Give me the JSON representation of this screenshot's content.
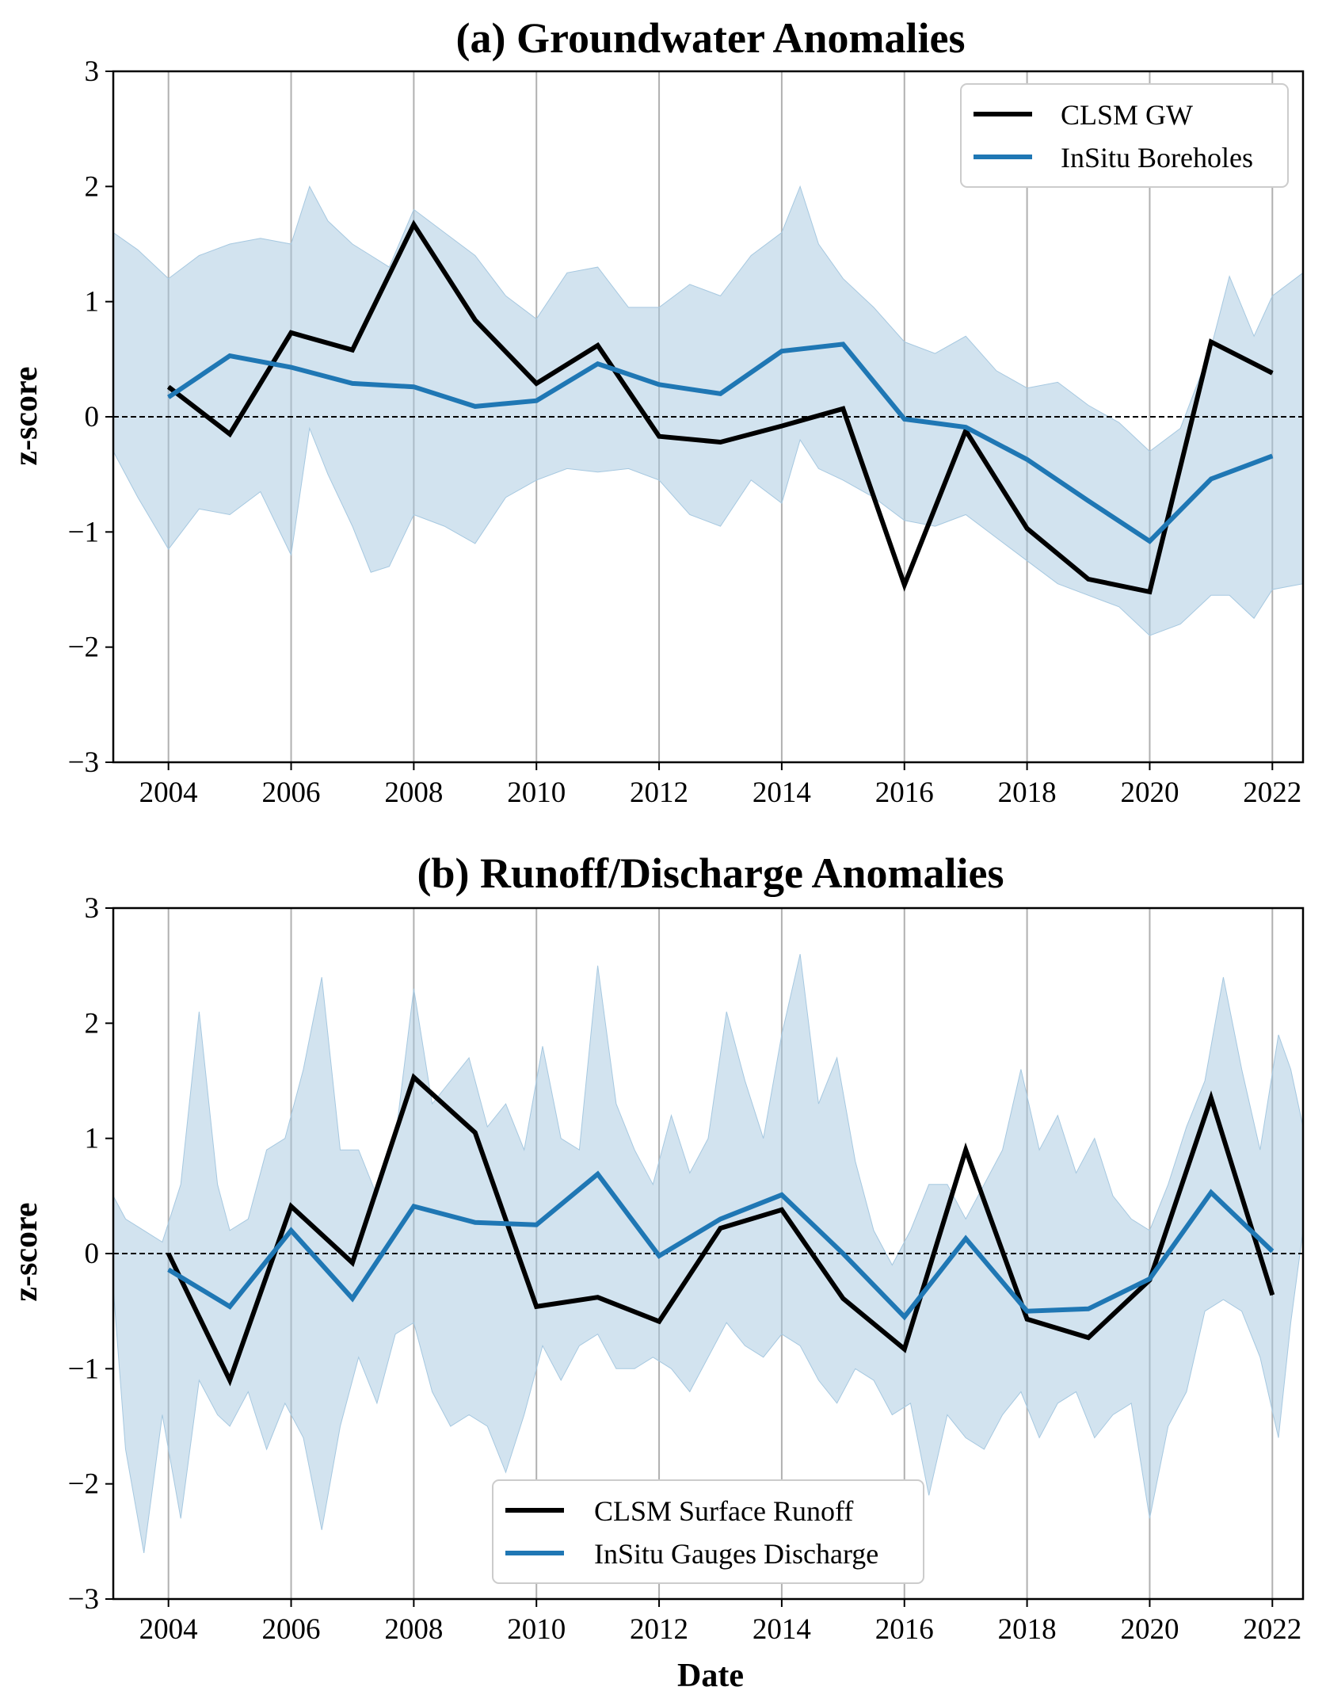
{
  "chart_data": [
    {
      "type": "line",
      "title": "(a) Groundwater Anomalies",
      "xlabel": "",
      "ylabel": "z-score",
      "xlim": [
        2003.1,
        2022.5
      ],
      "ylim": [
        -3,
        3
      ],
      "xticks": [
        2004,
        2006,
        2008,
        2010,
        2012,
        2014,
        2016,
        2018,
        2020,
        2022
      ],
      "xtick_labels": [
        "2004",
        "2006",
        "2008",
        "2010",
        "2012",
        "2014",
        "2016",
        "2018",
        "2020",
        "2022"
      ],
      "yticks": [
        -3,
        -2,
        -1,
        0,
        1,
        2,
        3
      ],
      "ytick_labels": [
        "−3",
        "−2",
        "−1",
        "0",
        "1",
        "2",
        "3"
      ],
      "grid": "vertical",
      "zero_line": true,
      "legend_position": "upper-right",
      "colors": {
        "model": "#000000",
        "insitu": "#1f77b4",
        "band": "#a6c8e0"
      },
      "x": [
        2004,
        2005,
        2006,
        2007,
        2008,
        2009,
        2010,
        2011,
        2012,
        2013,
        2014,
        2015,
        2016,
        2017,
        2018,
        2019,
        2020,
        2021,
        2022
      ],
      "series": [
        {
          "name": "CLSM GW",
          "color": "#000000",
          "values": [
            0.26,
            -0.15,
            0.73,
            0.58,
            1.67,
            0.84,
            0.29,
            0.62,
            -0.17,
            -0.22,
            -0.08,
            0.07,
            -1.46,
            -0.12,
            -0.97,
            -1.41,
            -1.52,
            0.65,
            0.38
          ]
        },
        {
          "name": "InSitu Boreholes",
          "color": "#1f77b4",
          "values": [
            0.17,
            0.53,
            0.43,
            0.29,
            0.26,
            0.09,
            0.14,
            0.46,
            0.28,
            0.2,
            0.57,
            0.63,
            -0.02,
            -0.09,
            -0.37,
            -0.73,
            -1.08,
            -0.54,
            -0.34
          ]
        }
      ],
      "band": {
        "name": "InSitu Boreholes spread",
        "x": [
          2003.1,
          2003.5,
          2004.0,
          2004.5,
          2005.0,
          2005.5,
          2006.0,
          2006.3,
          2006.6,
          2007.0,
          2007.3,
          2007.6,
          2008.0,
          2008.5,
          2009.0,
          2009.5,
          2010.0,
          2010.5,
          2011.0,
          2011.5,
          2012.0,
          2012.5,
          2013.0,
          2013.5,
          2014.0,
          2014.3,
          2014.6,
          2015.0,
          2015.5,
          2016.0,
          2016.5,
          2017.0,
          2017.5,
          2018.0,
          2018.5,
          2019.0,
          2019.5,
          2020.0,
          2020.5,
          2021.0,
          2021.3,
          2021.7,
          2022.0,
          2022.5
        ],
        "upper": [
          1.6,
          1.45,
          1.2,
          1.4,
          1.5,
          1.55,
          1.5,
          2.0,
          1.7,
          1.5,
          1.4,
          1.3,
          1.8,
          1.6,
          1.4,
          1.05,
          0.85,
          1.25,
          1.3,
          0.95,
          0.95,
          1.15,
          1.05,
          1.4,
          1.6,
          2.0,
          1.5,
          1.2,
          0.95,
          0.65,
          0.55,
          0.7,
          0.4,
          0.25,
          0.3,
          0.1,
          -0.05,
          -0.3,
          -0.1,
          0.6,
          1.22,
          0.7,
          1.05,
          1.25
        ],
        "lower": [
          -0.3,
          -0.7,
          -1.15,
          -0.8,
          -0.85,
          -0.65,
          -1.2,
          -0.1,
          -0.5,
          -0.95,
          -1.35,
          -1.3,
          -0.85,
          -0.95,
          -1.1,
          -0.7,
          -0.55,
          -0.45,
          -0.48,
          -0.45,
          -0.55,
          -0.85,
          -0.95,
          -0.55,
          -0.75,
          -0.2,
          -0.45,
          -0.55,
          -0.7,
          -0.9,
          -0.95,
          -0.85,
          -1.05,
          -1.25,
          -1.45,
          -1.55,
          -1.65,
          -1.9,
          -1.8,
          -1.55,
          -1.55,
          -1.75,
          -1.5,
          -1.45
        ]
      }
    },
    {
      "type": "line",
      "title": "(b) Runoff/Discharge Anomalies",
      "xlabel": "Date",
      "ylabel": "z-score",
      "xlim": [
        2003.1,
        2022.5
      ],
      "ylim": [
        -3,
        3
      ],
      "xticks": [
        2004,
        2006,
        2008,
        2010,
        2012,
        2014,
        2016,
        2018,
        2020,
        2022
      ],
      "xtick_labels": [
        "2004",
        "2006",
        "2008",
        "2010",
        "2012",
        "2014",
        "2016",
        "2018",
        "2020",
        "2022"
      ],
      "yticks": [
        -3,
        -2,
        -1,
        0,
        1,
        2,
        3
      ],
      "ytick_labels": [
        "−3",
        "−2",
        "−1",
        "0",
        "1",
        "2",
        "3"
      ],
      "grid": "vertical",
      "zero_line": true,
      "legend_position": "lower-center",
      "colors": {
        "model": "#000000",
        "insitu": "#1f77b4",
        "band": "#a6c8e0"
      },
      "x": [
        2004,
        2005,
        2006,
        2007,
        2008,
        2009,
        2010,
        2011,
        2012,
        2013,
        2014,
        2015,
        2016,
        2017,
        2018,
        2019,
        2020,
        2021,
        2022
      ],
      "series": [
        {
          "name": "CLSM Surface Runoff",
          "color": "#000000",
          "values": [
            0.0,
            -1.1,
            0.41,
            -0.08,
            1.53,
            1.05,
            -0.46,
            -0.38,
            -0.59,
            0.22,
            0.38,
            -0.39,
            -0.83,
            0.9,
            -0.57,
            -0.73,
            -0.23,
            1.35,
            -0.36
          ]
        },
        {
          "name": "InSitu Gauges Discharge",
          "color": "#1f77b4",
          "values": [
            -0.14,
            -0.46,
            0.2,
            -0.39,
            0.41,
            0.27,
            0.25,
            0.69,
            -0.02,
            0.3,
            0.51,
            0.0,
            -0.55,
            0.13,
            -0.5,
            -0.48,
            -0.22,
            0.53,
            0.02
          ]
        }
      ],
      "band": {
        "name": "InSitu Gauges Discharge spread",
        "x": [
          2003.1,
          2003.3,
          2003.6,
          2003.9,
          2004.2,
          2004.5,
          2004.8,
          2005.0,
          2005.3,
          2005.6,
          2005.9,
          2006.2,
          2006.5,
          2006.8,
          2007.1,
          2007.4,
          2007.7,
          2008.0,
          2008.3,
          2008.6,
          2008.9,
          2009.2,
          2009.5,
          2009.8,
          2010.1,
          2010.4,
          2010.7,
          2011.0,
          2011.3,
          2011.6,
          2011.9,
          2012.2,
          2012.5,
          2012.8,
          2013.1,
          2013.4,
          2013.7,
          2014.0,
          2014.3,
          2014.6,
          2014.9,
          2015.2,
          2015.5,
          2015.8,
          2016.1,
          2016.4,
          2016.7,
          2017.0,
          2017.3,
          2017.6,
          2017.9,
          2018.2,
          2018.5,
          2018.8,
          2019.1,
          2019.4,
          2019.7,
          2020.0,
          2020.3,
          2020.6,
          2020.9,
          2021.2,
          2021.5,
          2021.8,
          2022.1,
          2022.3,
          2022.5
        ],
        "upper": [
          0.5,
          0.3,
          0.2,
          0.1,
          0.6,
          2.1,
          0.6,
          0.2,
          0.3,
          0.9,
          1.0,
          1.6,
          2.4,
          0.9,
          0.9,
          0.5,
          1.0,
          2.3,
          1.3,
          1.5,
          1.7,
          1.1,
          1.3,
          0.9,
          1.8,
          1.0,
          0.9,
          2.5,
          1.3,
          0.9,
          0.6,
          1.2,
          0.7,
          1.0,
          2.1,
          1.5,
          1.0,
          1.9,
          2.6,
          1.3,
          1.7,
          0.8,
          0.2,
          -0.1,
          0.2,
          0.6,
          0.6,
          0.3,
          0.6,
          0.9,
          1.6,
          0.9,
          1.2,
          0.7,
          1.0,
          0.5,
          0.3,
          0.2,
          0.6,
          1.1,
          1.5,
          2.4,
          1.6,
          0.9,
          1.9,
          1.6,
          1.1
        ],
        "lower": [
          -0.3,
          -1.7,
          -2.6,
          -1.4,
          -2.3,
          -1.1,
          -1.4,
          -1.5,
          -1.2,
          -1.7,
          -1.3,
          -1.6,
          -2.4,
          -1.5,
          -0.9,
          -1.3,
          -0.7,
          -0.6,
          -1.2,
          -1.5,
          -1.4,
          -1.5,
          -1.9,
          -1.4,
          -0.8,
          -1.1,
          -0.8,
          -0.7,
          -1.0,
          -1.0,
          -0.9,
          -1.0,
          -1.2,
          -0.9,
          -0.6,
          -0.8,
          -0.9,
          -0.7,
          -0.8,
          -1.1,
          -1.3,
          -1.0,
          -1.1,
          -1.4,
          -1.3,
          -2.1,
          -1.4,
          -1.6,
          -1.7,
          -1.4,
          -1.2,
          -1.6,
          -1.3,
          -1.2,
          -1.6,
          -1.4,
          -1.3,
          -2.3,
          -1.5,
          -1.2,
          -0.5,
          -0.4,
          -0.5,
          -0.9,
          -1.6,
          -0.6,
          0.2
        ]
      }
    }
  ]
}
